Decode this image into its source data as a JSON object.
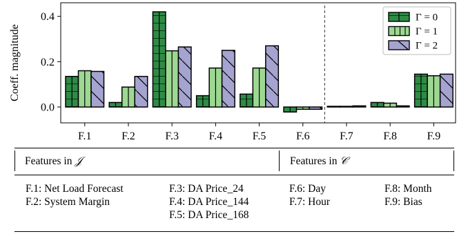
{
  "chart_data": {
    "type": "bar",
    "categories": [
      "F.1",
      "F.2",
      "F.3",
      "F.4",
      "F.5",
      "F.6",
      "F.7",
      "F.8",
      "F.9"
    ],
    "series": [
      {
        "name": "Γ = 0",
        "color": "#2e8b46",
        "hatch": "grid",
        "values": [
          0.135,
          0.02,
          0.42,
          0.05,
          0.057,
          -0.022,
          0.003,
          0.02,
          0.145
        ]
      },
      {
        "name": "Γ = 1",
        "color": "#9dd892",
        "hatch": "vertical",
        "values": [
          0.16,
          0.088,
          0.248,
          0.172,
          0.172,
          -0.01,
          0.003,
          0.017,
          0.138
        ]
      },
      {
        "name": "Γ = 2",
        "color": "#a5a3cf",
        "hatch": "diagonal",
        "values": [
          0.157,
          0.135,
          0.265,
          0.25,
          0.27,
          -0.01,
          0.005,
          0.005,
          0.145
        ]
      }
    ],
    "ylabel": "Coeff. magnitude",
    "ylim": [
      -0.07,
      0.46
    ],
    "yticks": [
      0.0,
      0.2,
      0.4
    ],
    "ytick_labels": [
      "0.0",
      "0.2",
      "0.4"
    ],
    "legend": "top-right",
    "grid": false,
    "divider_between": [
      "F.6",
      "F.7"
    ]
  },
  "table": {
    "left_header_text": "Features in ",
    "left_header_symbol": "𝒥",
    "right_header_text": "Features in ",
    "right_header_symbol": "𝒞",
    "col1": [
      "F.1: Net Load Forecast",
      "F.2: System Margin"
    ],
    "col2": [
      "F.3: DA Price_24",
      "F.4: DA Price_144",
      "F.5: DA Price_168"
    ],
    "col3": [
      "F.6: Day",
      "F.7: Hour"
    ],
    "col4": [
      "F.8: Month",
      "F.9: Bias"
    ]
  }
}
